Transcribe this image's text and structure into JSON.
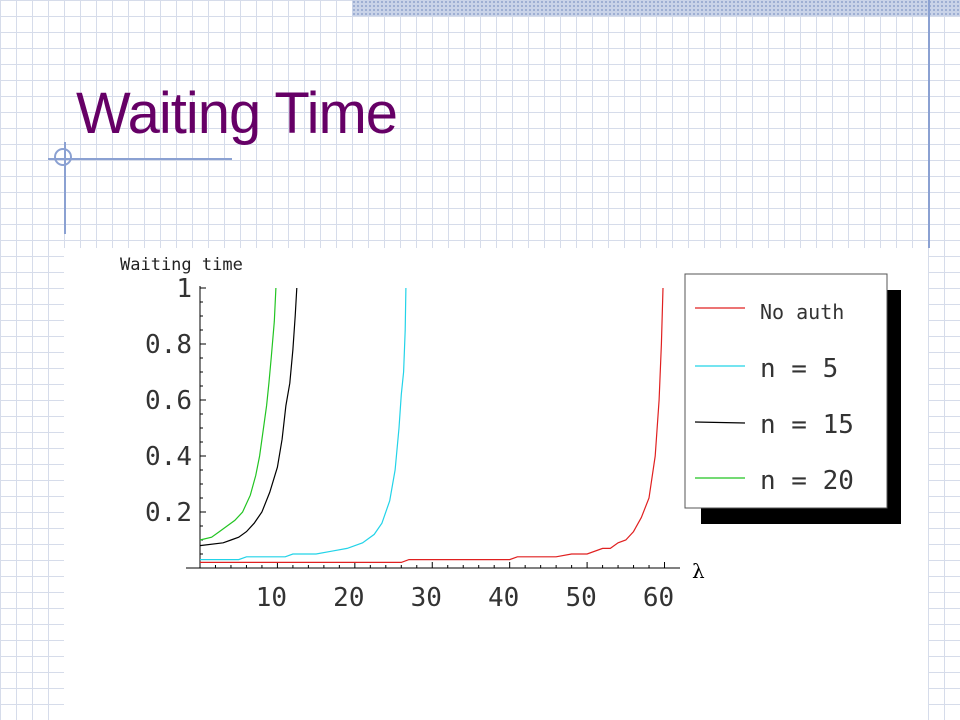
{
  "slide": {
    "title": "Waiting Time",
    "colors": {
      "title": "#660066",
      "grid": "#d6dcea",
      "accent_rule": "#8ba1d2"
    }
  },
  "chart_data": {
    "type": "line",
    "title": "",
    "xlabel": "λ",
    "ylabel": "Waiting time",
    "xlim": [
      0,
      62
    ],
    "ylim": [
      0,
      1
    ],
    "x_ticks": [
      10,
      20,
      30,
      40,
      50,
      60
    ],
    "y_ticks": [
      0.2,
      0.4,
      0.6,
      0.8,
      1
    ],
    "y_tick_labels": [
      "0.2",
      "0.4",
      "0.6",
      "0.8",
      "1"
    ],
    "x_tick_labels": [
      "10",
      "20",
      "30",
      "40",
      "50",
      "60"
    ],
    "grid": false,
    "legend_position": "right",
    "series": [
      {
        "name": "No auth",
        "color": "#e02020",
        "points": [
          [
            0,
            0.02
          ],
          [
            20,
            0.02
          ],
          [
            26,
            0.02
          ],
          [
            27,
            0.03
          ],
          [
            40,
            0.03
          ],
          [
            41,
            0.04
          ],
          [
            46,
            0.04
          ],
          [
            48,
            0.05
          ],
          [
            50,
            0.05
          ],
          [
            52,
            0.07
          ],
          [
            53,
            0.07
          ],
          [
            54,
            0.09
          ],
          [
            55,
            0.1
          ],
          [
            56,
            0.13
          ],
          [
            57,
            0.18
          ],
          [
            58,
            0.25
          ],
          [
            58.8,
            0.4
          ],
          [
            59.3,
            0.6
          ],
          [
            59.6,
            0.8
          ],
          [
            59.8,
            1.0
          ]
        ]
      },
      {
        "name": "n = 5",
        "color": "#22d3e8",
        "points": [
          [
            0,
            0.03
          ],
          [
            5,
            0.03
          ],
          [
            6,
            0.04
          ],
          [
            11,
            0.04
          ],
          [
            12,
            0.05
          ],
          [
            15,
            0.05
          ],
          [
            17,
            0.06
          ],
          [
            19,
            0.07
          ],
          [
            21,
            0.09
          ],
          [
            22.5,
            0.12
          ],
          [
            23.5,
            0.16
          ],
          [
            24.5,
            0.24
          ],
          [
            25.2,
            0.35
          ],
          [
            25.7,
            0.5
          ],
          [
            26.0,
            0.62
          ],
          [
            26.3,
            0.7
          ],
          [
            26.5,
            0.85
          ],
          [
            26.6,
            1.0
          ]
        ]
      },
      {
        "name": "n = 15",
        "color": "#000000",
        "points": [
          [
            0,
            0.08
          ],
          [
            3,
            0.09
          ],
          [
            4,
            0.1
          ],
          [
            5,
            0.11
          ],
          [
            6,
            0.13
          ],
          [
            7,
            0.16
          ],
          [
            8,
            0.2
          ],
          [
            9,
            0.27
          ],
          [
            10,
            0.36
          ],
          [
            10.6,
            0.46
          ],
          [
            11.1,
            0.58
          ],
          [
            11.6,
            0.66
          ],
          [
            12.0,
            0.78
          ],
          [
            12.3,
            0.9
          ],
          [
            12.5,
            1.0
          ]
        ]
      },
      {
        "name": "n = 20",
        "color": "#22c422",
        "points": [
          [
            0,
            0.1
          ],
          [
            1.5,
            0.11
          ],
          [
            2.5,
            0.13
          ],
          [
            3.5,
            0.15
          ],
          [
            4.5,
            0.17
          ],
          [
            5.5,
            0.2
          ],
          [
            6.5,
            0.26
          ],
          [
            7.2,
            0.33
          ],
          [
            7.7,
            0.4
          ],
          [
            8.2,
            0.5
          ],
          [
            8.6,
            0.58
          ],
          [
            8.9,
            0.66
          ],
          [
            9.2,
            0.75
          ],
          [
            9.6,
            0.88
          ],
          [
            9.8,
            1.0
          ]
        ]
      }
    ]
  }
}
